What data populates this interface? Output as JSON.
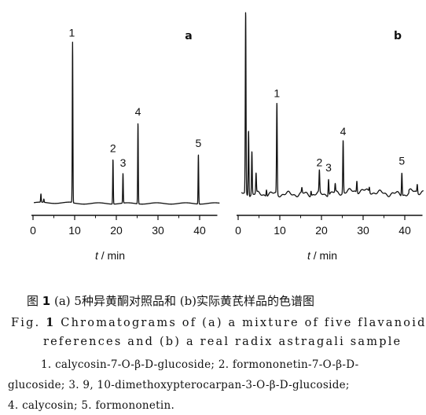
{
  "chart_data": [
    {
      "type": "line",
      "panel_label": "a",
      "xlabel": "t / min",
      "xlim": [
        0,
        45
      ],
      "x_ticks": [
        "0",
        "10",
        "20",
        "30",
        "40"
      ],
      "peaks": [
        {
          "label": "1",
          "x": 9.5,
          "height": 0.97
        },
        {
          "label": "2",
          "x": 19.2,
          "height": 0.27
        },
        {
          "label": "3",
          "x": 21.6,
          "height": 0.18
        },
        {
          "label": "4",
          "x": 25.2,
          "height": 0.49
        },
        {
          "label": "5",
          "x": 39.7,
          "height": 0.3
        }
      ],
      "minor_peaks": [
        {
          "x": 1.9,
          "height": 0.05
        },
        {
          "x": 2.6,
          "height": 0.02
        }
      ]
    },
    {
      "type": "line",
      "panel_label": "b",
      "xlabel": "t / min",
      "xlim": [
        0,
        45
      ],
      "x_ticks": [
        "0",
        "10",
        "20",
        "30",
        "40"
      ],
      "peaks": [
        {
          "label": "1",
          "x": 9.3,
          "height": 0.55
        },
        {
          "label": "2",
          "x": 19.5,
          "height": 0.13
        },
        {
          "label": "3",
          "x": 21.7,
          "height": 0.1
        },
        {
          "label": "4",
          "x": 25.2,
          "height": 0.32
        },
        {
          "label": "5",
          "x": 39.3,
          "height": 0.14
        }
      ],
      "minor_peaks": [
        {
          "x": 1.8,
          "height": 1.1
        },
        {
          "x": 2.5,
          "height": 0.4
        },
        {
          "x": 3.3,
          "height": 0.26
        },
        {
          "x": 4.3,
          "height": 0.12
        },
        {
          "x": 6.8,
          "height": 0.04
        },
        {
          "x": 15.3,
          "height": 0.03
        },
        {
          "x": 17.5,
          "height": 0.03
        },
        {
          "x": 23.3,
          "height": 0.05
        },
        {
          "x": 28.5,
          "height": 0.07
        },
        {
          "x": 31.5,
          "height": 0.03
        },
        {
          "x": 43.0,
          "height": 0.05
        }
      ]
    }
  ],
  "caption": {
    "cn_prefix": "图 ",
    "cn_num": "1",
    "cn_text": "   (a) 5种异黄酮对照品和 (b)实际黄芪样品的色谱图",
    "en_prefix": "Fig. ",
    "en_num": "1",
    "en_line1": "  Chromatograms of (a) a mixture of five flavanoid",
    "en_line2": "references and (b) a real radix astragali sample"
  },
  "legend": {
    "line1": "1. calycosin-7-O-β-D-glucoside;  2. formononetin-7-O-β-D-",
    "line2": "glucoside;  3. 9, 10-dimethoxypterocarpan-3-O-β-D-glucoside;",
    "line3": "4. calycosin;  5. formononetin."
  }
}
